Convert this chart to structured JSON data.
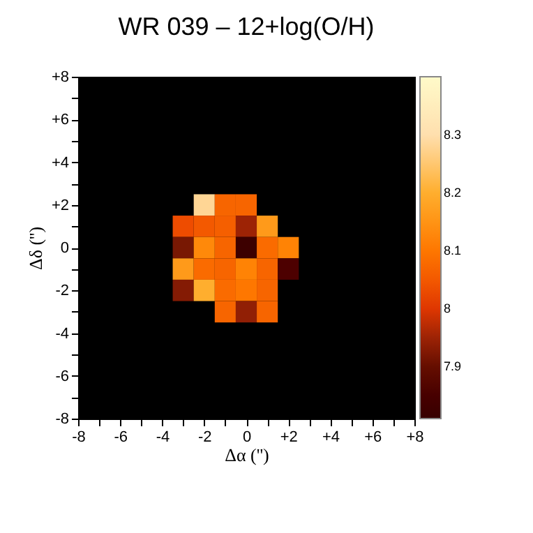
{
  "chart_data": {
    "type": "heatmap",
    "title": "WR 039 – 12+log(O/H)",
    "xlabel": "Δα ('')",
    "ylabel": "Δδ ('')",
    "x": [
      -3,
      -2,
      -1,
      0,
      1,
      2
    ],
    "y": [
      2,
      1,
      0,
      -1,
      -2,
      -3
    ],
    "cells": [
      [
        null,
        8.28,
        8.07,
        8.07,
        null,
        null
      ],
      [
        8.03,
        8.05,
        8.06,
        7.95,
        8.16,
        null
      ],
      [
        7.92,
        8.13,
        8.07,
        7.83,
        8.08,
        8.12
      ],
      [
        8.16,
        8.08,
        8.07,
        8.12,
        8.07,
        7.86
      ],
      [
        7.93,
        8.2,
        8.08,
        8.1,
        8.07,
        null
      ],
      [
        null,
        null,
        8.07,
        7.94,
        8.07,
        null
      ]
    ],
    "xlim": [
      -8,
      8
    ],
    "ylim": [
      -8,
      8
    ],
    "xticks": [
      -8,
      {
        "value": -7,
        "label": null
      },
      -6,
      {
        "value": -5,
        "label": null
      },
      -4,
      {
        "value": -3,
        "label": null
      },
      -2,
      {
        "value": -1,
        "label": null
      },
      0,
      {
        "value": 1,
        "label": null
      },
      {
        "value": 2,
        "label": "+2"
      },
      {
        "value": 3,
        "label": null
      },
      {
        "value": 4,
        "label": "+4"
      },
      {
        "value": 5,
        "label": null
      },
      {
        "value": 6,
        "label": "+6"
      },
      {
        "value": 7,
        "label": null
      },
      {
        "value": 8,
        "label": "+8"
      }
    ],
    "yticks": [
      -8,
      {
        "value": -7,
        "label": null
      },
      -6,
      {
        "value": -5,
        "label": null
      },
      -4,
      {
        "value": -3,
        "label": null
      },
      -2,
      {
        "value": -1,
        "label": null
      },
      0,
      {
        "value": 1,
        "label": null
      },
      {
        "value": 2,
        "label": "+2"
      },
      {
        "value": 3,
        "label": null
      },
      {
        "value": 4,
        "label": "+4"
      },
      {
        "value": 5,
        "label": null
      },
      {
        "value": 6,
        "label": "+6"
      },
      {
        "value": 7,
        "label": null
      },
      {
        "value": 8,
        "label": "+8"
      }
    ],
    "clim": [
      7.81,
      8.4
    ],
    "cticks": [
      7.9,
      8,
      8.1,
      8.2,
      8.3
    ]
  }
}
